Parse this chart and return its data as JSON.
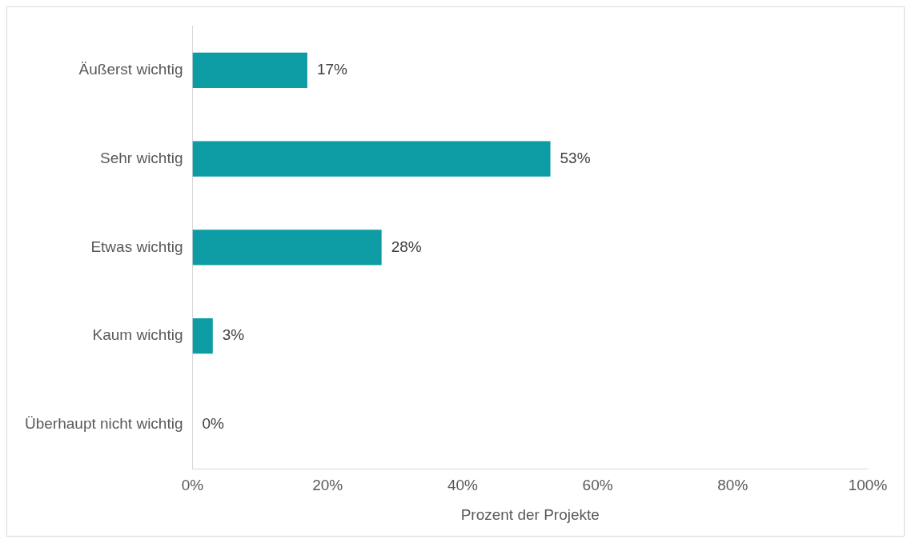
{
  "chart_data": {
    "type": "bar",
    "orientation": "horizontal",
    "categories": [
      "Äußerst wichtig",
      "Sehr wichtig",
      "Etwas wichtig",
      "Kaum wichtig",
      "Überhaupt nicht wichtig"
    ],
    "values": [
      17,
      53,
      28,
      3,
      0
    ],
    "color": "#0e9ca4",
    "value_labels": [
      "17%",
      "53%",
      "28%",
      "3%",
      "0%"
    ],
    "xlabel": "Prozent der Projekte",
    "xlim": [
      0,
      100
    ],
    "xticks": [
      {
        "value": 0,
        "label": "0%"
      },
      {
        "value": 20,
        "label": "20%"
      },
      {
        "value": 40,
        "label": "40%"
      },
      {
        "value": 60,
        "label": "60%"
      },
      {
        "value": 80,
        "label": "80%"
      },
      {
        "value": 100,
        "label": "100%"
      }
    ],
    "grid": false,
    "legend": false
  }
}
